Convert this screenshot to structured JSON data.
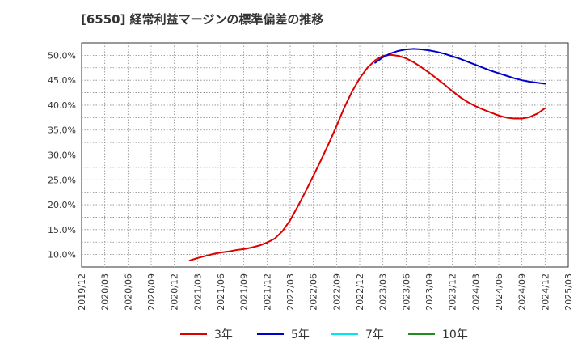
{
  "chart_data": {
    "type": "line",
    "title": "[6550]  経常利益マージンの標準偏差の推移",
    "xlabel": "",
    "ylabel": "",
    "x_ticks": [
      "2019/12",
      "2020/03",
      "2020/06",
      "2020/09",
      "2020/12",
      "2021/03",
      "2021/06",
      "2021/09",
      "2021/12",
      "2022/03",
      "2022/06",
      "2022/09",
      "2022/12",
      "2023/03",
      "2023/06",
      "2023/09",
      "2023/12",
      "2024/03",
      "2024/06",
      "2024/09",
      "2024/12",
      "2025/03"
    ],
    "y_ticks": [
      "10.0%",
      "15.0%",
      "20.0%",
      "25.0%",
      "30.0%",
      "35.0%",
      "40.0%",
      "45.0%",
      "50.0%"
    ],
    "ylim": [
      7.5,
      52.5
    ],
    "grid": true,
    "legend_position": "bottom",
    "series": [
      {
        "name": "3年",
        "color": "#dd0000",
        "points": [
          [
            "2021/02",
            8.8
          ],
          [
            "2021/03",
            9.3
          ],
          [
            "2021/04",
            9.7
          ],
          [
            "2021/05",
            10.1
          ],
          [
            "2021/06",
            10.4
          ],
          [
            "2021/07",
            10.6
          ],
          [
            "2021/08",
            10.9
          ],
          [
            "2021/09",
            11.1
          ],
          [
            "2021/10",
            11.4
          ],
          [
            "2021/11",
            11.8
          ],
          [
            "2021/12",
            12.4
          ],
          [
            "2022/01",
            13.2
          ],
          [
            "2022/02",
            14.7
          ],
          [
            "2022/03",
            16.9
          ],
          [
            "2022/04",
            19.7
          ],
          [
            "2022/05",
            22.7
          ],
          [
            "2022/06",
            25.8
          ],
          [
            "2022/07",
            29.0
          ],
          [
            "2022/08",
            32.3
          ],
          [
            "2022/09",
            35.8
          ],
          [
            "2022/10",
            39.5
          ],
          [
            "2022/11",
            42.7
          ],
          [
            "2022/12",
            45.4
          ],
          [
            "2023/01",
            47.5
          ],
          [
            "2023/02",
            49.0
          ],
          [
            "2023/03",
            49.9
          ],
          [
            "2023/04",
            50.1
          ],
          [
            "2023/05",
            49.9
          ],
          [
            "2023/06",
            49.4
          ],
          [
            "2023/07",
            48.6
          ],
          [
            "2023/08",
            47.6
          ],
          [
            "2023/09",
            46.5
          ],
          [
            "2023/10",
            45.3
          ],
          [
            "2023/11",
            44.1
          ],
          [
            "2023/12",
            42.8
          ],
          [
            "2024/01",
            41.6
          ],
          [
            "2024/02",
            40.6
          ],
          [
            "2024/03",
            39.8
          ],
          [
            "2024/04",
            39.1
          ],
          [
            "2024/05",
            38.5
          ],
          [
            "2024/06",
            37.9
          ],
          [
            "2024/07",
            37.5
          ],
          [
            "2024/08",
            37.3
          ],
          [
            "2024/09",
            37.3
          ],
          [
            "2024/10",
            37.6
          ],
          [
            "2024/11",
            38.3
          ],
          [
            "2024/12",
            39.4
          ]
        ]
      },
      {
        "name": "5年",
        "color": "#0000cc",
        "points": [
          [
            "2023/02",
            48.5
          ],
          [
            "2023/03",
            49.6
          ],
          [
            "2023/04",
            50.4
          ],
          [
            "2023/05",
            50.9
          ],
          [
            "2023/06",
            51.2
          ],
          [
            "2023/07",
            51.3
          ],
          [
            "2023/08",
            51.2
          ],
          [
            "2023/09",
            51.0
          ],
          [
            "2023/10",
            50.7
          ],
          [
            "2023/11",
            50.3
          ],
          [
            "2023/12",
            49.8
          ],
          [
            "2024/01",
            49.3
          ],
          [
            "2024/02",
            48.7
          ],
          [
            "2024/03",
            48.1
          ],
          [
            "2024/04",
            47.5
          ],
          [
            "2024/05",
            46.9
          ],
          [
            "2024/06",
            46.4
          ],
          [
            "2024/07",
            45.9
          ],
          [
            "2024/08",
            45.4
          ],
          [
            "2024/09",
            45.0
          ],
          [
            "2024/10",
            44.7
          ],
          [
            "2024/11",
            44.5
          ],
          [
            "2024/12",
            44.3
          ]
        ]
      },
      {
        "name": "7年",
        "color": "#00e5ee",
        "points": []
      },
      {
        "name": "10年",
        "color": "#228b22",
        "points": []
      }
    ]
  }
}
